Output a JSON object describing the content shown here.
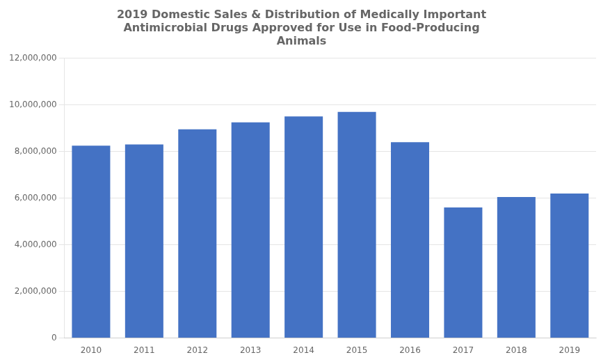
{
  "chart_data": {
    "type": "bar",
    "title": "2019 Domestic Sales & Distribution of Medically Important\nAntimicrobial Drugs Approved for Use in Food-Producing\nAnimals",
    "categories": [
      "2010",
      "2011",
      "2012",
      "2013",
      "2014",
      "2015",
      "2016",
      "2017",
      "2018",
      "2019"
    ],
    "values": [
      8250000,
      8300000,
      8950000,
      9250000,
      9500000,
      9700000,
      8400000,
      5600000,
      6050000,
      6200000
    ],
    "color": "#4472C4",
    "ylim": [
      0,
      12000000
    ],
    "yticks": [
      0,
      {
        "value": 2000000,
        "label": "2,000,000"
      },
      {
        "value": 4000000,
        "label": "4,000,000"
      },
      {
        "value": 6000000,
        "label": "6,000,000"
      },
      {
        "value": 8000000,
        "label": "8,000,000"
      },
      {
        "value": 10000000,
        "label": "10,000,000"
      },
      {
        "value": 12000000,
        "label": "12,000,000"
      }
    ],
    "grid": true
  }
}
